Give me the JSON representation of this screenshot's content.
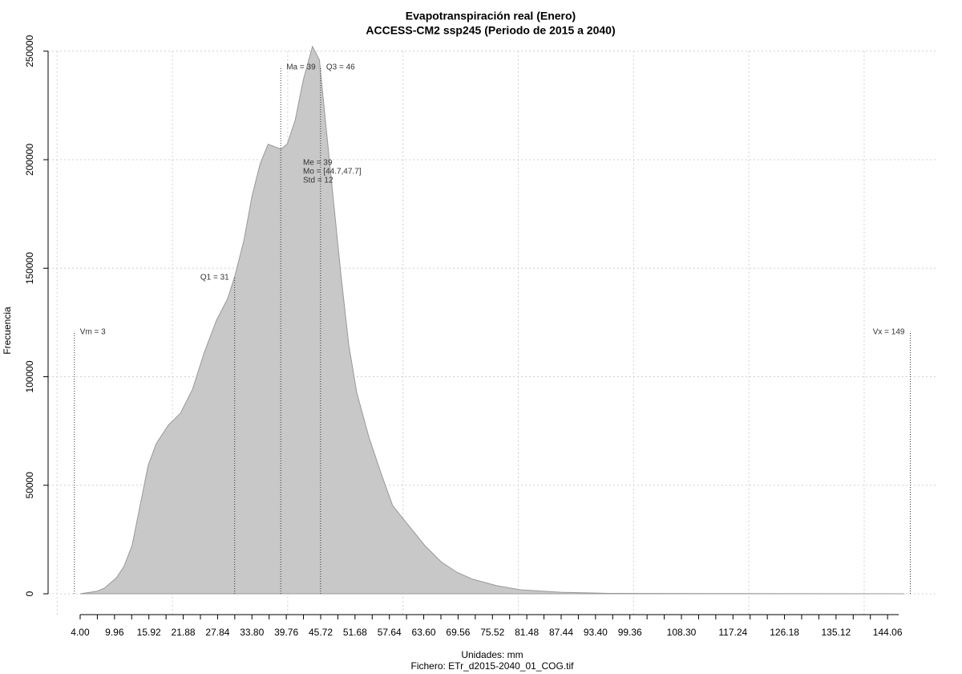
{
  "chart_data": {
    "type": "area",
    "title": "Evapotranspiración real (Enero)",
    "subtitle": "ACCESS-CM2 ssp245 (Periodo de 2015 a 2040)",
    "x_label": "Unidades: mm",
    "caption": "Fichero: ETr_d2015-2040_01_COG.tif",
    "y_label": "Frecuencia",
    "color": "#c8c8c8",
    "line_color": "#999999",
    "grid": true,
    "x": [
      4,
      6.8,
      8.2,
      10.3,
      11.6,
      13.0,
      14.4,
      15.8,
      17.2,
      19.3,
      21.4,
      23.5,
      25.5,
      27.6,
      29.6,
      30.8,
      32.4,
      33.8,
      35.2,
      36.6,
      38.8,
      39.9,
      41.3,
      42.7,
      44.3,
      45.5,
      46.4,
      47.8,
      49.2,
      50.6,
      52.0,
      54.1,
      56.2,
      58.2,
      61.0,
      63.8,
      66.6,
      69.3,
      72.1,
      76.3,
      80.5,
      87.4,
      95.8,
      115.3,
      147
    ],
    "values": [
      0,
      1100,
      2600,
      7400,
      12600,
      22200,
      40700,
      59200,
      69200,
      77700,
      83200,
      94300,
      111000,
      125700,
      136100,
      146100,
      162700,
      183100,
      197900,
      207100,
      204900,
      207100,
      218200,
      236700,
      252200,
      246000,
      221900,
      184900,
      147900,
      114600,
      92500,
      72100,
      55500,
      40700,
      31400,
      22200,
      14800,
      10000,
      6700,
      3700,
      1800,
      700,
      200,
      100,
      0
    ],
    "xlim": [
      -1.56,
      152.8
    ],
    "ylim": [
      -9600,
      252500
    ],
    "xticks": [
      {
        "value": 4,
        "label": "4.00"
      },
      9.96,
      15.92,
      21.88,
      27.84,
      {
        "value": 33.8,
        "label": "33.80"
      },
      39.76,
      45.72,
      51.68,
      57.64,
      {
        "value": 63.6,
        "label": "63.60"
      },
      69.56,
      75.52,
      81.48,
      87.44,
      {
        "value": 93.4,
        "label": "93.40"
      },
      99.36,
      {
        "value": 108.3,
        "label": "108.30"
      },
      117.24,
      126.18,
      135.12,
      144.06
    ],
    "xminorticks": [
      6.98,
      12.94,
      18.9,
      24.86,
      30.82,
      36.78,
      42.74,
      48.7,
      54.66,
      60.62,
      66.58,
      72.54,
      78.5,
      84.46,
      90.42,
      96.38,
      102.34,
      105.32,
      111.28,
      114.26,
      120.22,
      123.2,
      129.16,
      132.14,
      138.1,
      141.08
    ],
    "xgrid": [
      0,
      20,
      40,
      60,
      80,
      100,
      120,
      140
    ],
    "yticks": [
      0,
      50000,
      100000,
      150000,
      200000,
      250000
    ],
    "markers": [
      {
        "label": "Vm = 3",
        "x": 3,
        "y": 121000,
        "side": "right"
      },
      {
        "label": "Q1 = 31",
        "x": 30.8,
        "y": 146000,
        "side": "left"
      },
      {
        "label": "Ma = 39",
        "x": 38.8,
        "y": 243000,
        "side": "right"
      },
      {
        "label": "Q3 = 46",
        "x": 45.7,
        "y": 243000,
        "side": "right"
      },
      {
        "label": "Vx = 149",
        "x": 148,
        "y": 121000,
        "side": "left"
      }
    ],
    "stats": [
      "Me = 39",
      "Mo = [44.7,47.7]",
      "Std = 12"
    ]
  }
}
